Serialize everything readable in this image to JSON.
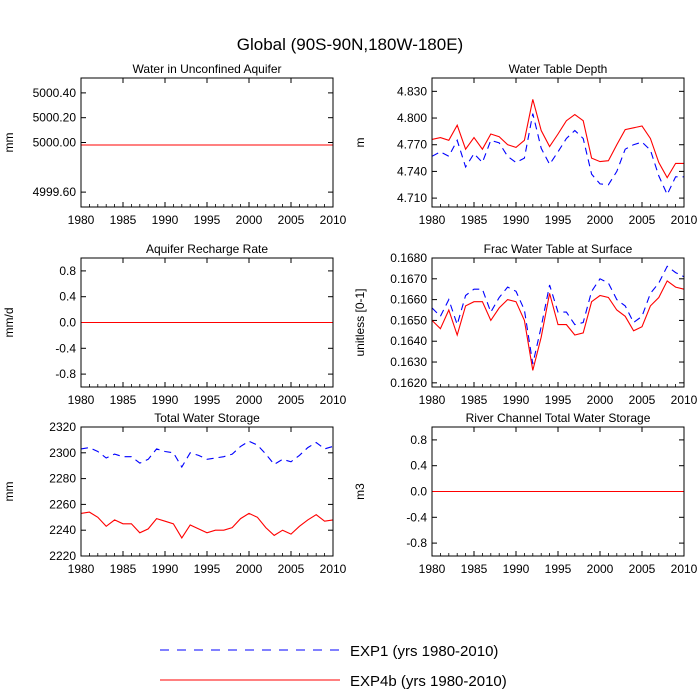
{
  "figure": {
    "title": "Global (90S-90N,180W-180E)",
    "legend": [
      {
        "label": "EXP1 (yrs 1980-2010)",
        "color": "#0000ff",
        "dash": "dashed"
      },
      {
        "label": "EXP4b (yrs 1980-2010)",
        "color": "#ff0000",
        "dash": "solid"
      }
    ]
  },
  "chart_data": [
    {
      "type": "line",
      "title": "Water in Unconfined Aquifer",
      "ylabel": "mm",
      "xlim": [
        1980,
        2010
      ],
      "ylim": [
        4999.48,
        5000.52
      ],
      "xticks": [
        1980,
        1985,
        1990,
        1995,
        2000,
        2005,
        2010
      ],
      "yticks": [
        4999.6,
        5000.0,
        5000.2,
        5000.4
      ],
      "ytick_labels": [
        "4999.60",
        "5000.00",
        "5000.20",
        "5000.40"
      ],
      "x": [
        1980,
        2010
      ],
      "series": [
        {
          "name": "EXP1",
          "values": [
            4999.98,
            4999.98
          ]
        },
        {
          "name": "EXP4b",
          "values": [
            4999.98,
            4999.98
          ]
        }
      ]
    },
    {
      "type": "line",
      "title": "Water Table Depth",
      "ylabel": "m",
      "xlim": [
        1980,
        2010
      ],
      "ylim": [
        4.7,
        4.845
      ],
      "xticks": [
        1980,
        1985,
        1990,
        1995,
        2000,
        2005,
        2010
      ],
      "yticks": [
        4.71,
        4.74,
        4.77,
        4.8,
        4.83
      ],
      "ytick_labels": [
        "4.710",
        "4.740",
        "4.770",
        "4.800",
        "4.830"
      ],
      "x": [
        1980,
        1981,
        1982,
        1983,
        1984,
        1985,
        1986,
        1987,
        1988,
        1989,
        1990,
        1991,
        1992,
        1993,
        1994,
        1995,
        1996,
        1997,
        1998,
        1999,
        2000,
        2001,
        2002,
        2003,
        2004,
        2005,
        2006,
        2007,
        2008,
        2009,
        2010
      ],
      "series": [
        {
          "name": "EXP1",
          "values": [
            4.757,
            4.762,
            4.757,
            4.775,
            4.745,
            4.76,
            4.75,
            4.775,
            4.772,
            4.757,
            4.75,
            4.755,
            4.805,
            4.766,
            4.748,
            4.762,
            4.777,
            4.786,
            4.777,
            4.737,
            4.726,
            4.725,
            4.74,
            4.765,
            4.77,
            4.773,
            4.764,
            4.735,
            4.714,
            4.734,
            4.734
          ]
        },
        {
          "name": "EXP4b",
          "values": [
            4.776,
            4.778,
            4.775,
            4.792,
            4.765,
            4.778,
            4.765,
            4.782,
            4.779,
            4.77,
            4.767,
            4.775,
            4.821,
            4.786,
            4.768,
            4.782,
            4.797,
            4.804,
            4.797,
            4.755,
            4.751,
            4.752,
            4.77,
            4.787,
            4.789,
            4.791,
            4.777,
            4.75,
            4.733,
            4.749,
            4.749
          ]
        }
      ]
    },
    {
      "type": "line",
      "title": "Aquifer Recharge Rate",
      "ylabel": "mm/d",
      "xlim": [
        1980,
        2010
      ],
      "ylim": [
        -1.0,
        1.0
      ],
      "xticks": [
        1980,
        1985,
        1990,
        1995,
        2000,
        2005,
        2010
      ],
      "yticks": [
        -0.8,
        -0.4,
        0.0,
        0.4,
        0.8
      ],
      "ytick_labels": [
        "-0.8",
        "-0.4",
        "0.0",
        "0.4",
        "0.8"
      ],
      "x": [
        1980,
        2010
      ],
      "series": [
        {
          "name": "EXP1",
          "values": [
            0.0,
            0.0
          ]
        },
        {
          "name": "EXP4b",
          "values": [
            0.0,
            0.0
          ]
        }
      ]
    },
    {
      "type": "line",
      "title": "Frac Water Table at Surface",
      "ylabel": "unitless [0-1]",
      "xlim": [
        1980,
        2010
      ],
      "ylim": [
        0.1618,
        0.168
      ],
      "xticks": [
        1980,
        1985,
        1990,
        1995,
        2000,
        2005,
        2010
      ],
      "yticks": [
        0.162,
        0.163,
        0.164,
        0.165,
        0.166,
        0.167,
        0.168
      ],
      "ytick_labels": [
        "0.1620",
        "0.1630",
        "0.1640",
        "0.1650",
        "0.1660",
        "0.1670",
        "0.1680"
      ],
      "x": [
        1980,
        1981,
        1982,
        1983,
        1984,
        1985,
        1986,
        1987,
        1988,
        1989,
        1990,
        1991,
        1992,
        1993,
        1994,
        1995,
        1996,
        1997,
        1998,
        1999,
        2000,
        2001,
        2002,
        2003,
        2004,
        2005,
        2006,
        2007,
        2008,
        2009,
        2010
      ],
      "series": [
        {
          "name": "EXP1",
          "values": [
            0.1656,
            0.1652,
            0.166,
            0.1648,
            0.1662,
            0.1665,
            0.1665,
            0.1654,
            0.1661,
            0.1666,
            0.1664,
            0.1655,
            0.1629,
            0.1647,
            0.1667,
            0.1654,
            0.1654,
            0.1648,
            0.1649,
            0.1664,
            0.167,
            0.1668,
            0.166,
            0.1657,
            0.1649,
            0.1652,
            0.1663,
            0.1668,
            0.1676,
            0.1673,
            0.1671
          ]
        },
        {
          "name": "EXP4b",
          "values": [
            0.165,
            0.1646,
            0.1655,
            0.1643,
            0.1657,
            0.1659,
            0.1659,
            0.165,
            0.1656,
            0.166,
            0.1659,
            0.165,
            0.1626,
            0.1642,
            0.1663,
            0.1648,
            0.1648,
            0.1643,
            0.1644,
            0.1659,
            0.1662,
            0.1661,
            0.1655,
            0.1652,
            0.1645,
            0.1647,
            0.1657,
            0.1661,
            0.1669,
            0.1666,
            0.1665
          ]
        }
      ]
    },
    {
      "type": "line",
      "title": "Total Water Storage",
      "ylabel": "mm",
      "xlim": [
        1980,
        2010
      ],
      "ylim": [
        2220,
        2320
      ],
      "xticks": [
        1980,
        1985,
        1990,
        1995,
        2000,
        2005,
        2010
      ],
      "yticks": [
        2220,
        2240,
        2260,
        2280,
        2300,
        2320
      ],
      "ytick_labels": [
        "2220",
        "2240",
        "2260",
        "2280",
        "2300",
        "2320"
      ],
      "x": [
        1980,
        1981,
        1982,
        1983,
        1984,
        1985,
        1986,
        1987,
        1988,
        1989,
        1990,
        1991,
        1992,
        1993,
        1994,
        1995,
        1996,
        1997,
        1998,
        1999,
        2000,
        2001,
        2002,
        2003,
        2004,
        2005,
        2006,
        2007,
        2008,
        2009,
        2010
      ],
      "series": [
        {
          "name": "EXP1",
          "values": [
            2303,
            2304,
            2301,
            2296,
            2299,
            2297,
            2297,
            2292,
            2295,
            2303,
            2301,
            2300,
            2289,
            2300,
            2298,
            2295,
            2296,
            2297,
            2299,
            2305,
            2309,
            2306,
            2299,
            2291,
            2295,
            2293,
            2298,
            2304,
            2308,
            2303,
            2305
          ]
        },
        {
          "name": "EXP4b",
          "values": [
            2253,
            2254,
            2250,
            2243,
            2248,
            2245,
            2245,
            2238,
            2241,
            2249,
            2247,
            2245,
            2234,
            2244,
            2241,
            2238,
            2240,
            2240,
            2242,
            2249,
            2253,
            2250,
            2242,
            2236,
            2240,
            2237,
            2243,
            2248,
            2252,
            2247,
            2248
          ]
        }
      ]
    },
    {
      "type": "line",
      "title": "River Channel Total Water Storage",
      "ylabel": "m3",
      "xlim": [
        1980,
        2010
      ],
      "ylim": [
        -1.0,
        1.0
      ],
      "xticks": [
        1980,
        1985,
        1990,
        1995,
        2000,
        2005,
        2010
      ],
      "yticks": [
        -0.8,
        -0.4,
        0.0,
        0.4,
        0.8
      ],
      "ytick_labels": [
        "-0.8",
        "-0.4",
        "0.0",
        "0.4",
        "0.8"
      ],
      "x": [
        1980,
        2010
      ],
      "series": [
        {
          "name": "EXP1",
          "values": [
            0.0,
            0.0
          ]
        },
        {
          "name": "EXP4b",
          "values": [
            0.0,
            0.0
          ]
        }
      ]
    }
  ]
}
